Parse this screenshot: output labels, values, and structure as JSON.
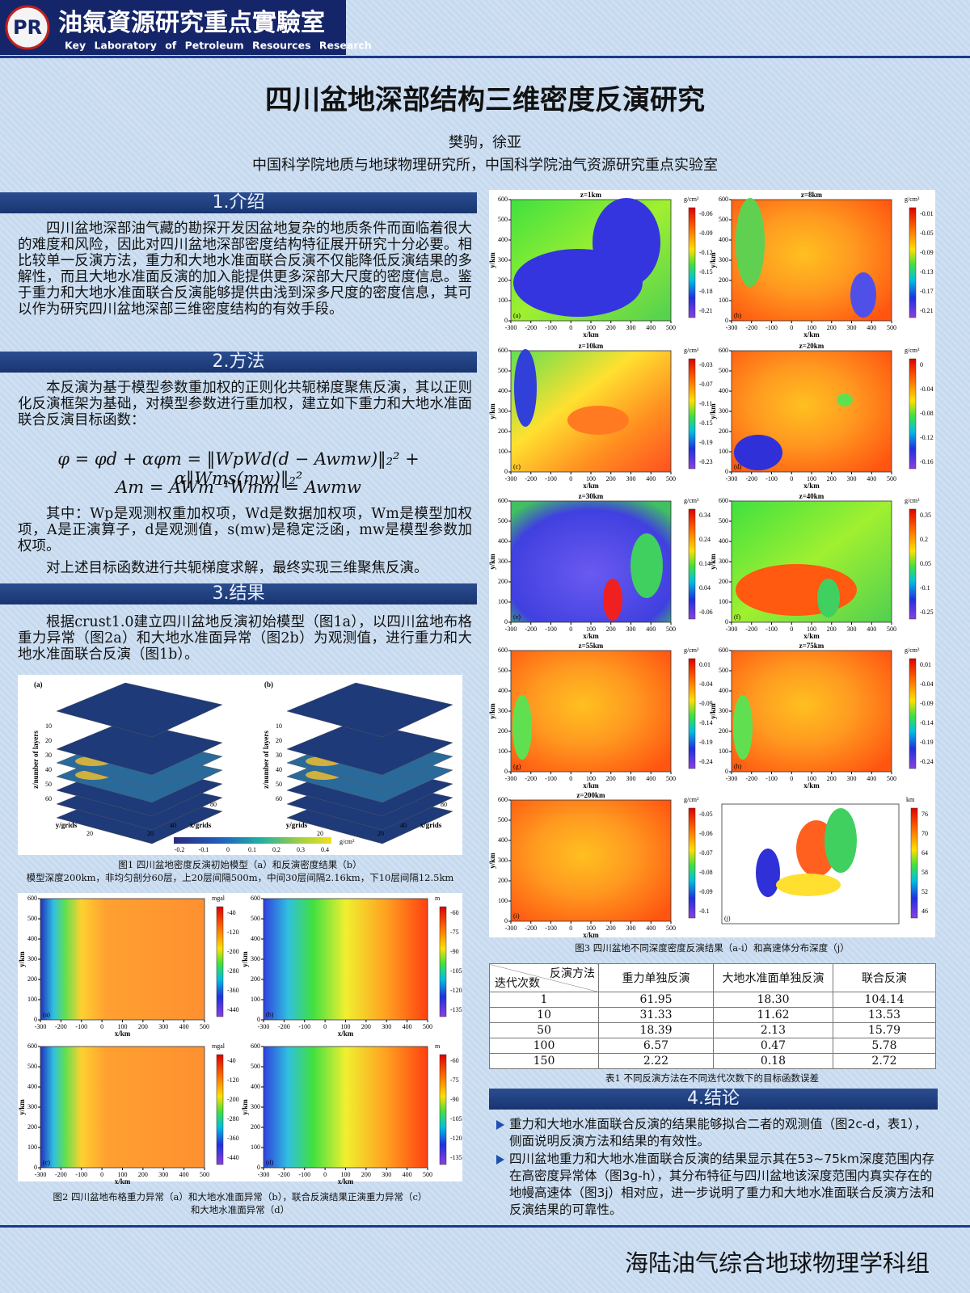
{
  "header": {
    "logo": "PR",
    "lab_cn": "油氣資源研究重点實驗室",
    "lab_en": "Key Laboratory of Petroleum Resources Research"
  },
  "title": "四川盆地深部结构三维密度反演研究",
  "authors": "樊驹，徐亚",
  "affiliation": "中国科学院地质与地球物理研究所，中国科学院油气资源研究重点实验室",
  "intro": {
    "heading": "1.介绍",
    "text": "四川盆地深部油气藏的勘探开发因盆地复杂的地质条件而面临着很大的难度和风险，因此对四川盆地深部密度结构特征展开研究十分必要。相比较单一反演方法，重力和大地水准面联合反演不仅能降低反演结果的多解性，而且大地水准面反演的加入能提供更多深部大尺度的密度信息。鉴于重力和大地水准面联合反演能够提供由浅到深多尺度的密度信息，其可以作为研究四川盆地深部三维密度结构的有效手段。"
  },
  "method": {
    "heading": "2.方法",
    "text": "本反演为基于模型参数重加权的正则化共轭梯度聚焦反演，其以正则化反演框架为基础，对模型参数进行重加权，建立如下重力和大地水准面联合反演目标函数：",
    "equations": [
      "φ = φd + αφm = ‖WpWd(d − Awmw)‖₂² + α‖Wms(mw)‖₂²",
      "Am = AWm⁻¹Wmm = Awmw"
    ],
    "note": "其中：Wp是观测权重加权项，Wd是数据加权项，Wm是模型加权项，A是正演算子，d是观测值，s(mw)是稳定泛函，mw是模型参数加权项。",
    "text2": "对上述目标函数进行共轭梯度求解，最终实现三维聚焦反演。"
  },
  "results": {
    "heading": "3.结果",
    "text": "根据crust1.0建立四川盆地反演初始模型（图1a），以四川盆地布格重力异常（图2a）和大地水准面异常（图2b）为观测值，进行重力和大地水准面联合反演（图1b）。"
  },
  "fig1": {
    "panels": [
      "(a)",
      "(b)"
    ],
    "z_label": "z/number of layers",
    "z_ticks": [
      "10",
      "20",
      "30",
      "40",
      "50",
      "60"
    ],
    "y_label": "y/grids",
    "y_ticks": [
      "20"
    ],
    "x_label": "x/grids",
    "x_ticks": [
      "20",
      "40",
      "80"
    ],
    "colorbar_ticks": [
      "-0.2",
      "-0.1",
      "0",
      "0.1",
      "0.2",
      "0.3",
      "0.4"
    ],
    "unit": "g/cm³",
    "caption": [
      "图1 四川盆地密度反演初始模型（a）和反演密度结果（b）",
      "模型深度200km，非均匀剖分60层，上20层间隔500m，中间30层间隔2.16km，下10层间隔12.5km"
    ]
  },
  "fig2": {
    "axes": {
      "x_label": "x/km",
      "y_label": "y/km",
      "x_ticks": [
        "-300",
        "-200",
        "-100",
        "0",
        "100",
        "200",
        "300",
        "400",
        "500"
      ],
      "y_ticks": [
        "0",
        "100",
        "200",
        "300",
        "400",
        "500",
        "600"
      ]
    },
    "panels": [
      {
        "letter": "(a)",
        "unit": "mgal",
        "ticks": [
          "-40",
          "-120",
          "-200",
          "-280",
          "-360",
          "-440"
        ]
      },
      {
        "letter": "(b)",
        "unit": "m",
        "ticks": [
          "-60",
          "-75",
          "-90",
          "-105",
          "-120",
          "-135"
        ]
      },
      {
        "letter": "(c)",
        "unit": "mgal",
        "ticks": [
          "-40",
          "-120",
          "-200",
          "-280",
          "-360",
          "-440"
        ]
      },
      {
        "letter": "(d)",
        "unit": "m",
        "ticks": [
          "-60",
          "-75",
          "-90",
          "-105",
          "-120",
          "-135"
        ]
      }
    ],
    "caption": [
      "图2 四川盆地布格重力异常（a）和大地水准面异常（b），联合反演结果正演重力异常（c）",
      "和大地水准面异常（d）"
    ]
  },
  "fig3": {
    "axes": {
      "x_label": "x/km",
      "y_label": "y/km",
      "x_ticks": [
        "-300",
        "-200",
        "-100",
        "0",
        "100",
        "200",
        "300",
        "400",
        "500"
      ],
      "y_ticks": [
        "0",
        "100",
        "200",
        "300",
        "400",
        "500",
        "600"
      ]
    },
    "unit": "g/cm³",
    "panels": [
      {
        "title": "z=1km",
        "letter": "(a)",
        "ticks": [
          "-0.06",
          "-0.09",
          "-0.12",
          "-0.15",
          "-0.18",
          "-0.21"
        ]
      },
      {
        "title": "z=8km",
        "letter": "(b)",
        "ticks": [
          "-0.01",
          "-0.05",
          "-0.09",
          "-0.13",
          "-0.17",
          "-0.21"
        ]
      },
      {
        "title": "z=10km",
        "letter": "(c)",
        "ticks": [
          "-0.03",
          "-0.07",
          "-0.11",
          "-0.15",
          "-0.19",
          "-0.23"
        ]
      },
      {
        "title": "z=20km",
        "letter": "(d)",
        "ticks": [
          "0",
          "-0.04",
          "-0.08",
          "-0.12",
          "-0.16"
        ]
      },
      {
        "title": "z=30km",
        "letter": "(e)",
        "ticks": [
          "0.34",
          "0.24",
          "0.14",
          "0.04",
          "-0.06"
        ]
      },
      {
        "title": "z=40km",
        "letter": "(f)",
        "ticks": [
          "0.35",
          "0.2",
          "0.05",
          "-0.1",
          "-0.25"
        ]
      },
      {
        "title": "z=55km",
        "letter": "(g)",
        "ticks": [
          "0.01",
          "-0.04",
          "-0.09",
          "-0.14",
          "-0.19",
          "-0.24"
        ]
      },
      {
        "title": "z=75km",
        "letter": "(h)",
        "ticks": [
          "0.01",
          "-0.04",
          "-0.09",
          "-0.14",
          "-0.19",
          "-0.24"
        ]
      },
      {
        "title": "z=200km",
        "letter": "(i)",
        "ticks": [
          "-0.05",
          "-0.06",
          "-0.07",
          "-0.08",
          "-0.09",
          "-0.1"
        ]
      },
      {
        "letter": "(j)",
        "unit": "km",
        "ticks": [
          "76",
          "70",
          "64",
          "58",
          "52",
          "46"
        ]
      }
    ],
    "caption": "图3 四川盆地不同深度密度反演结果（a-i）和高速体分布深度（j）"
  },
  "table": {
    "corner_top": "反演方法",
    "corner_bottom": "迭代次数",
    "columns": [
      "重力单独反演",
      "大地水准面单独反演",
      "联合反演"
    ],
    "rows": [
      [
        "1",
        "61.95",
        "18.30",
        "104.14"
      ],
      [
        "10",
        "31.33",
        "11.62",
        "13.53"
      ],
      [
        "50",
        "18.39",
        "2.13",
        "15.79"
      ],
      [
        "100",
        "6.57",
        "0.47",
        "5.78"
      ],
      [
        "150",
        "2.22",
        "0.18",
        "2.72"
      ]
    ],
    "caption": "表1 不同反演方法在不同迭代次数下的目标函数误差"
  },
  "conclusion": {
    "heading": "4.结论",
    "items": [
      "重力和大地水准面联合反演的结果能够拟合二者的观测值（图2c-d，表1），侧面说明反演方法和结果的有效性。",
      "四川盆地重力和大地水准面联合反演的结果显示其在53~75km深度范围内存在高密度异常体（图3g-h），其分布特征与四川盆地该深度范围内真实存在的地幔高速体（图3j）相对应，进一步说明了重力和大地水准面联合反演方法和反演结果的可靠性。"
    ]
  },
  "footer": "海陆油气综合地球物理学科组"
}
